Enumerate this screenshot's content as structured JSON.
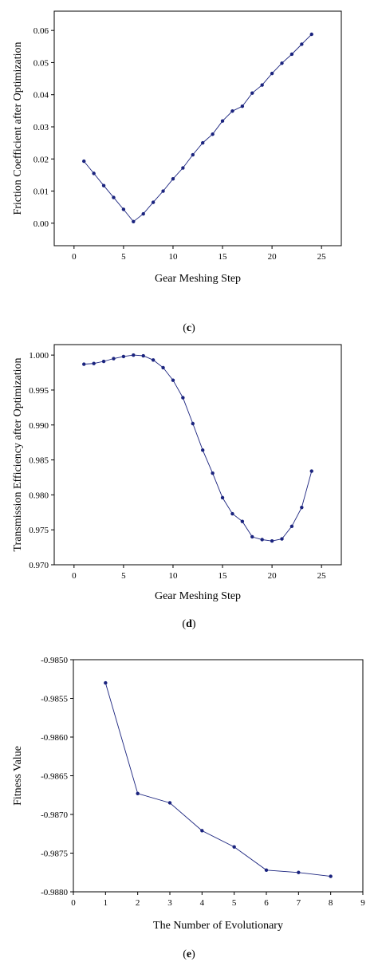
{
  "chart_data": [
    {
      "type": "line",
      "caption": "(c)",
      "caption_letter": "c",
      "xlabel": "Gear Meshing Step",
      "ylabel": "Friction Coefficient after Optimization",
      "xlim": [
        -2,
        27
      ],
      "ylim": [
        -0.007,
        0.066
      ],
      "xticks": [
        0,
        5,
        10,
        15,
        20,
        25
      ],
      "yticks": [
        0.0,
        0.01,
        0.02,
        0.03,
        0.04,
        0.05,
        0.06
      ],
      "xtick_labels": [
        "0",
        "5",
        "10",
        "15",
        "20",
        "25"
      ],
      "ytick_labels": [
        "0.00",
        "0.01",
        "0.02",
        "0.03",
        "0.04",
        "0.05",
        "0.06"
      ],
      "series_color": "#1a237e",
      "x": [
        1,
        2,
        3,
        4,
        5,
        6,
        7,
        8,
        9,
        10,
        11,
        12,
        13,
        14,
        15,
        16,
        17,
        18,
        19,
        20,
        21,
        22,
        23,
        24
      ],
      "y": [
        0.0193,
        0.0155,
        0.0117,
        0.008,
        0.0043,
        0.0005,
        0.0029,
        0.0065,
        0.01,
        0.0138,
        0.0172,
        0.0213,
        0.025,
        0.0277,
        0.0318,
        0.0349,
        0.0364,
        0.0405,
        0.043,
        0.0466,
        0.0498,
        0.0526,
        0.0557,
        0.0588
      ]
    },
    {
      "type": "line",
      "caption": "(d)",
      "caption_letter": "d",
      "xlabel": "Gear Meshing Step",
      "ylabel": "Transmission Efficiency after Optimization",
      "xlim": [
        -2,
        27
      ],
      "ylim": [
        0.97,
        1.0015
      ],
      "xticks": [
        0,
        5,
        10,
        15,
        20,
        25
      ],
      "yticks": [
        0.97,
        0.975,
        0.98,
        0.985,
        0.99,
        0.995,
        1.0
      ],
      "xtick_labels": [
        "0",
        "5",
        "10",
        "15",
        "20",
        "25"
      ],
      "ytick_labels": [
        "0.970",
        "0.975",
        "0.980",
        "0.985",
        "0.990",
        "0.995",
        "1.000"
      ],
      "series_color": "#1a237e",
      "x": [
        1,
        2,
        3,
        4,
        5,
        6,
        7,
        8,
        9,
        10,
        11,
        12,
        13,
        14,
        15,
        16,
        17,
        18,
        19,
        20,
        21,
        22,
        23,
        24
      ],
      "y": [
        0.9987,
        0.9988,
        0.9991,
        0.9995,
        0.9998,
        1.0,
        0.9999,
        0.9993,
        0.9982,
        0.9964,
        0.9939,
        0.9902,
        0.9864,
        0.9831,
        0.9796,
        0.9773,
        0.9762,
        0.974,
        0.9736,
        0.9734,
        0.9737,
        0.9755,
        0.9782,
        0.9834
      ]
    },
    {
      "type": "line",
      "caption": "(e)",
      "caption_letter": "e",
      "xlabel": "The Number of Evolutionary",
      "ylabel": "Fitness Value",
      "xlim": [
        0,
        9
      ],
      "ylim": [
        -0.988,
        -0.985
      ],
      "xticks": [
        0,
        1,
        2,
        3,
        4,
        5,
        6,
        7,
        8,
        9
      ],
      "yticks": [
        -0.988,
        -0.9875,
        -0.987,
        -0.9865,
        -0.986,
        -0.9855,
        -0.985
      ],
      "xtick_labels": [
        "0",
        "1",
        "2",
        "3",
        "4",
        "5",
        "6",
        "7",
        "8",
        "9"
      ],
      "ytick_labels": [
        "-0.9880",
        "-0.9875",
        "-0.9870",
        "-0.9865",
        "-0.9860",
        "-0.9855",
        "-0.9850"
      ],
      "series_color": "#1a237e",
      "x": [
        1,
        2,
        3,
        4,
        5,
        6,
        7,
        8
      ],
      "y": [
        -0.9853,
        -0.98673,
        -0.98685,
        -0.98721,
        -0.98742,
        -0.98772,
        -0.98775,
        -0.9878
      ]
    }
  ]
}
